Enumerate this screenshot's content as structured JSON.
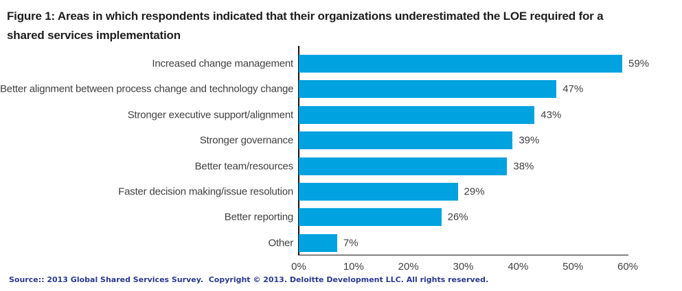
{
  "figure": {
    "title_line1": "Figure 1: Areas in which respondents indicated that their organizations underestimated the LOE required for a",
    "title_line2": "shared services implementation",
    "source": "Source:: 2013 Global Shared Services Survey.  Copyright © 2013. Deloitte Development LLC. All rights reserved."
  },
  "colors": {
    "bar": "#00A2DF",
    "axis": "#111111",
    "title_text": "#1e1e1e",
    "label_text": "#404040",
    "source_text": "#2a3890",
    "background": "#ffffff"
  },
  "chart_data": {
    "type": "bar",
    "orientation": "horizontal",
    "title": "Figure 1: Areas in which respondents indicated that their organizations underestimated the LOE required for a shared services implementation",
    "categories": [
      "Increased change management",
      "Better alignment between process change and technology change",
      "Stronger executive support/alignment",
      "Stronger governance",
      "Better team/resources",
      "Faster decision making/issue resolution",
      "Better reporting",
      "Other"
    ],
    "values": [
      59,
      47,
      43,
      39,
      38,
      29,
      26,
      7
    ],
    "value_labels": [
      "59%",
      "47%",
      "43%",
      "39%",
      "38%",
      "29%",
      "26%",
      "7%"
    ],
    "xlabel": "",
    "ylabel": "",
    "xlim": [
      0,
      60
    ],
    "x_tick_values": [
      0,
      10,
      20,
      30,
      40,
      50,
      60
    ],
    "x_ticks": [
      "0%",
      "10%",
      "20%",
      "30%",
      "40%",
      "50%",
      "60%"
    ],
    "grid": false,
    "legend": "none",
    "bar_color": "#00A2DF",
    "source_note": "Source:: 2013 Global Shared Services Survey.  Copyright © 2013. Deloitte Development LLC. All rights reserved."
  }
}
